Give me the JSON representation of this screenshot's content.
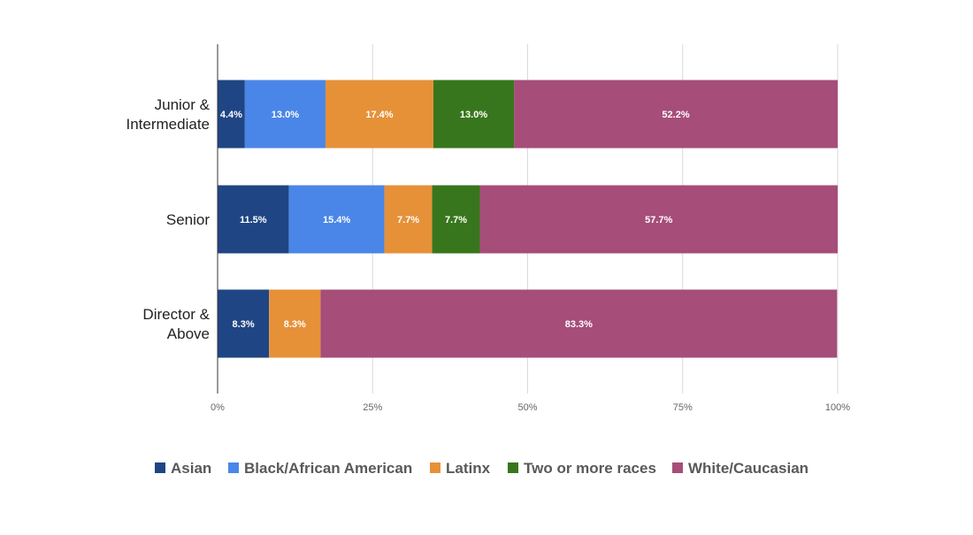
{
  "chart_data": {
    "type": "bar",
    "orientation": "horizontal",
    "stacked": true,
    "percent_stacked": true,
    "categories": [
      [
        "Junior &",
        "Intermediate"
      ],
      [
        "Senior"
      ],
      [
        "Director &",
        "Above"
      ]
    ],
    "series": [
      {
        "name": "Asian",
        "color": "#1f4584",
        "values": [
          4.4,
          11.5,
          8.3
        ],
        "labels": [
          "4.4%",
          "11.5%",
          "8.3%"
        ]
      },
      {
        "name": "Black/African American",
        "color": "#4a86e8",
        "values": [
          13.0,
          15.4,
          0
        ],
        "labels": [
          "13.0%",
          "15.4%",
          ""
        ]
      },
      {
        "name": "Latinx",
        "color": "#e69138",
        "values": [
          17.4,
          7.7,
          8.3
        ],
        "labels": [
          "17.4%",
          "7.7%",
          "8.3%"
        ]
      },
      {
        "name": "Two or more races",
        "color": "#38761d",
        "values": [
          13.0,
          7.7,
          0
        ],
        "labels": [
          "13.0%",
          "7.7%",
          ""
        ]
      },
      {
        "name": "White/Caucasian",
        "color": "#a64d79",
        "values": [
          52.2,
          57.7,
          83.3
        ],
        "labels": [
          "52.2%",
          "57.7%",
          "83.3%"
        ]
      }
    ],
    "x_ticks": [
      "0%",
      "25%",
      "50%",
      "75%",
      "100%"
    ],
    "xlim": [
      0,
      100
    ],
    "grid": true,
    "legend_position": "bottom"
  }
}
